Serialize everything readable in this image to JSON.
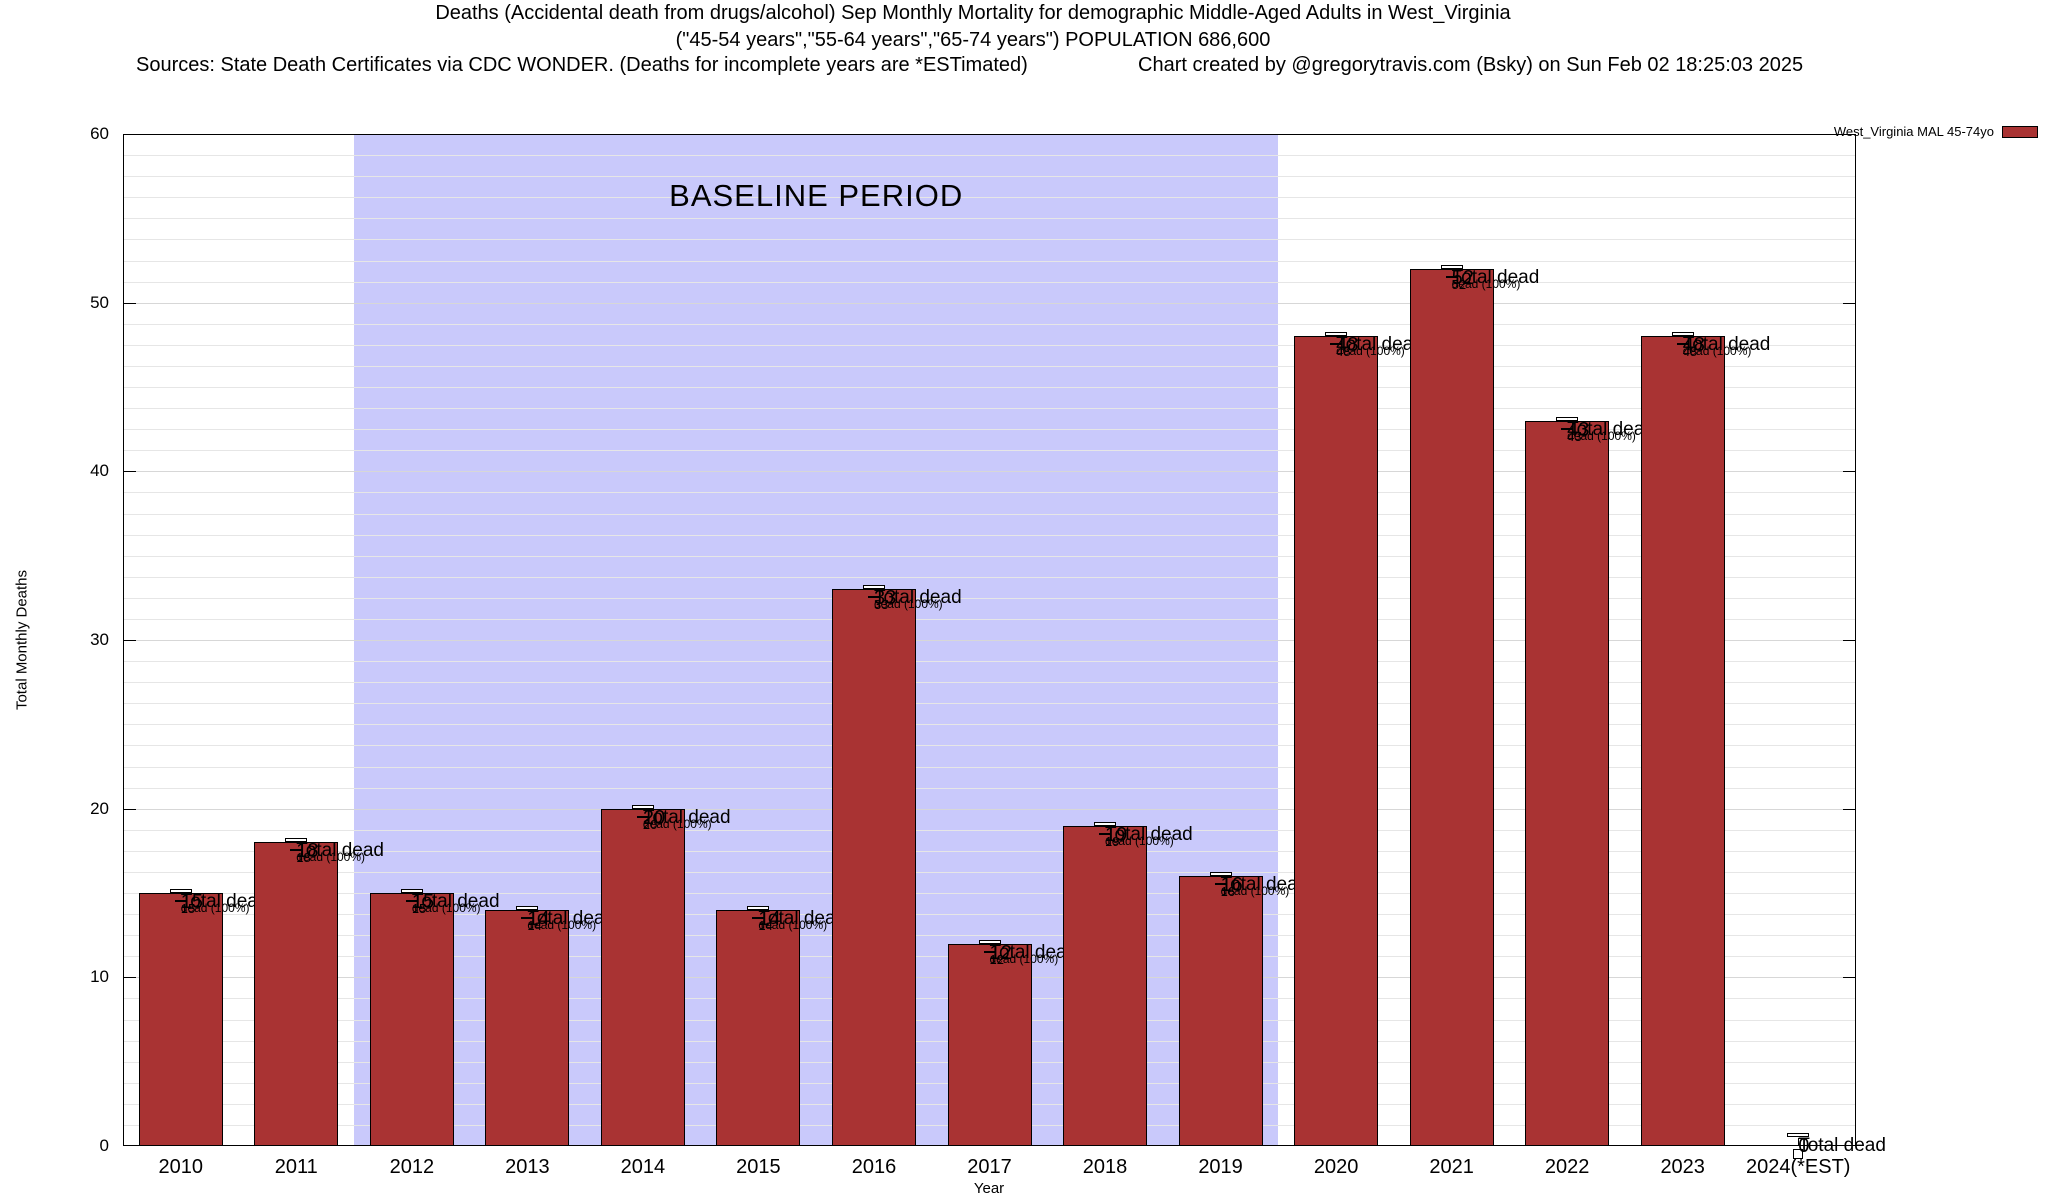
{
  "header": {
    "title_line1": "Deaths (Accidental death from drugs/alcohol) Sep Monthly Mortality for demographic Middle-Aged Adults in West_Virginia",
    "title_line2": "(\"45-54 years\",\"55-64 years\",\"65-74 years\") POPULATION 686,600",
    "sources": "Sources: State Death Certificates via CDC WONDER. (Deaths for incomplete years are *ESTimated)",
    "credit": "Chart created by @gregorytravis.com (Bsky) on Sun Feb 02 18:25:03 2025"
  },
  "legend": {
    "label": "West_Virginia MAL 45-74yo",
    "swatch_color": "#a93333"
  },
  "chart_data": {
    "type": "bar",
    "title": "Deaths (Accidental death from drugs/alcohol) Sep Monthly Mortality for demographic Middle-Aged Adults in West_Virginia",
    "xlabel": "Year",
    "ylabel": "Total Monthly Deaths",
    "ylim": [
      0,
      60
    ],
    "yticks": [
      0,
      10,
      20,
      30,
      40,
      50,
      60
    ],
    "minor_grid_step": 1.25,
    "grid": "horizontal",
    "legend_position": "top-right",
    "categories": [
      "2010",
      "2011",
      "2012",
      "2013",
      "2014",
      "2015",
      "2016",
      "2017",
      "2018",
      "2019",
      "2020",
      "2021",
      "2022",
      "2023",
      "2024(*EST)"
    ],
    "values": [
      15,
      18,
      15,
      14,
      20,
      14,
      33,
      12,
      19,
      16,
      48,
      52,
      43,
      48,
      0
    ],
    "bar_color": "#a93333",
    "bar_border_color": "#000000",
    "annotation_total_suffix": "Total dead",
    "annotation_inner_suffix": "dead (100%)",
    "baseline_region": {
      "label": "BASELINE PERIOD",
      "start_index": 2,
      "end_index": 9,
      "start_category": "2012",
      "end_category": "2019",
      "color": "#c9c9fb"
    },
    "grid_minor_color": "#e6e6e6",
    "grid_major_color": "#d7d7d7"
  }
}
